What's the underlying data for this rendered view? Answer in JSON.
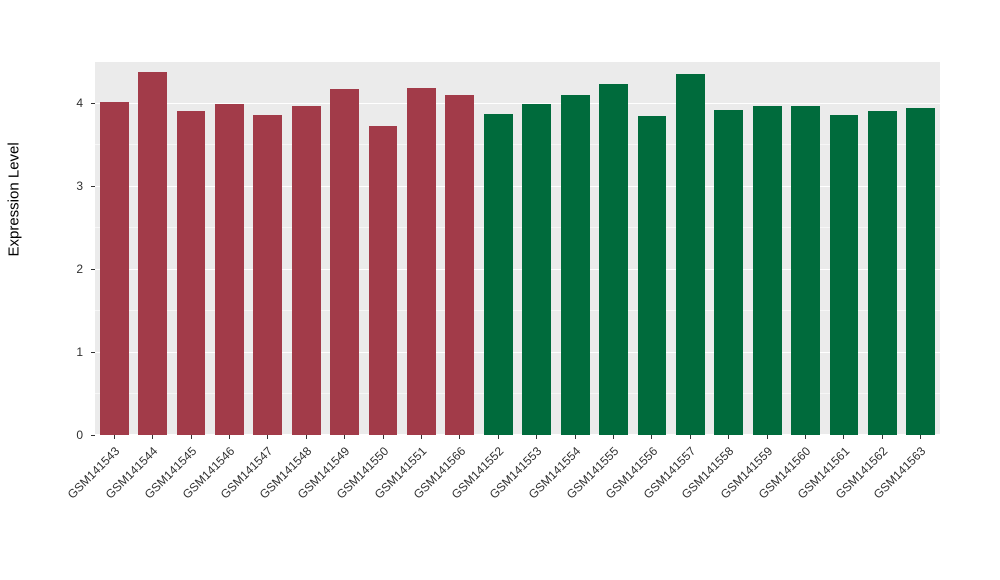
{
  "chart_data": {
    "type": "bar",
    "title": "",
    "xlabel": "",
    "ylabel": "Expression Level",
    "ylim": [
      0,
      4.5
    ],
    "yticks": [
      0,
      1,
      2,
      3,
      4
    ],
    "minor_gridlines": [
      0.5,
      1.5,
      2.5,
      3.5
    ],
    "grid": "white major and minor horizontal lines on gray panel",
    "legend_position": "none",
    "panel_background": "#EBEBEB",
    "categories": [
      "GSM141543",
      "GSM141544",
      "GSM141545",
      "GSM141546",
      "GSM141547",
      "GSM141548",
      "GSM141549",
      "GSM141550",
      "GSM141551",
      "GSM141566",
      "GSM141552",
      "GSM141553",
      "GSM141554",
      "GSM141555",
      "GSM141556",
      "GSM141557",
      "GSM141558",
      "GSM141559",
      "GSM141560",
      "GSM141561",
      "GSM141562",
      "GSM141563"
    ],
    "values": [
      4.02,
      4.38,
      3.91,
      3.99,
      3.86,
      3.97,
      4.17,
      3.73,
      4.19,
      4.1,
      3.87,
      3.99,
      4.1,
      4.24,
      3.85,
      4.36,
      3.92,
      3.97,
      3.97,
      3.86,
      3.91,
      3.95
    ],
    "groups": [
      "group1",
      "group1",
      "group1",
      "group1",
      "group1",
      "group1",
      "group1",
      "group1",
      "group1",
      "group1",
      "group2",
      "group2",
      "group2",
      "group2",
      "group2",
      "group2",
      "group2",
      "group2",
      "group2",
      "group2",
      "group2",
      "group2"
    ],
    "colors": {
      "group1": "#A23B49",
      "group2": "#006B3C"
    }
  }
}
